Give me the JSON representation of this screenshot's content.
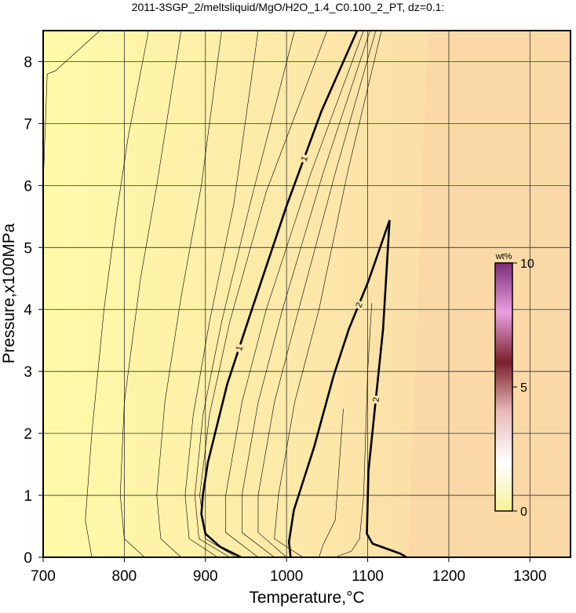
{
  "chart_data": {
    "type": "contour",
    "title": "2011-3SGP_2/meltsliquid/MgO/H2O_1.4_C0.100_2_PT, dz=0.1:",
    "xlabel": "Temperature,°C",
    "ylabel": "Pressure,x100MPa",
    "xlim": [
      700,
      1350
    ],
    "ylim": [
      0,
      8.5
    ],
    "xticks": [
      700,
      800,
      900,
      1000,
      1100,
      1200,
      1300
    ],
    "yticks": [
      0,
      1,
      2,
      3,
      4,
      5,
      6,
      7,
      8
    ],
    "grid": true,
    "contours": [
      {
        "x": [
          700,
          705,
          715,
          770
        ],
        "y": [
          6,
          7.8,
          7.85,
          8.5
        ]
      },
      {
        "x": [
          760,
          752,
          760,
          775,
          790,
          805,
          830
        ],
        "y": [
          0,
          0.6,
          2,
          4,
          5.5,
          6.8,
          8.5
        ]
      },
      {
        "x": [
          825,
          800,
          795,
          800,
          820,
          840,
          870
        ],
        "y": [
          0,
          0.3,
          1,
          2.5,
          4.5,
          6,
          8.5
        ]
      },
      {
        "x": [
          870,
          845,
          840,
          850,
          870,
          895,
          920
        ],
        "y": [
          0,
          0.3,
          1,
          2.5,
          4.2,
          6,
          8.5
        ]
      },
      {
        "x": [
          915,
          880,
          875,
          885,
          905,
          935,
          965
        ],
        "y": [
          0,
          0.3,
          1,
          2.3,
          3.8,
          5.7,
          8.5
        ]
      },
      {
        "x": [
          930,
          892,
          887,
          897,
          920,
          955,
          1010
        ],
        "y": [
          0,
          0.3,
          1,
          2.3,
          3.8,
          5.7,
          8.5
        ]
      },
      {
        "x": [
          938,
          900,
          893,
          905,
          930,
          975,
          1050
        ],
        "y": [
          0,
          0.3,
          1,
          2.3,
          3.8,
          5.9,
          8.5
        ]
      },
      {
        "level": 1,
        "x": [
          944,
          918,
          900,
          895,
          897,
          903,
          927,
          956,
          1000,
          1043,
          1087
        ],
        "y": [
          0,
          0.17,
          0.38,
          0.7,
          1.02,
          1.53,
          2.8,
          3.95,
          5.67,
          7.2,
          8.5
        ]
      },
      {
        "x": [
          965,
          925,
          925,
          945,
          975,
          1030,
          1095
        ],
        "y": [
          0,
          0.4,
          1,
          2.5,
          4,
          6.2,
          8.5
        ]
      },
      {
        "x": [
          985,
          945,
          945,
          965,
          995,
          1045,
          1103
        ],
        "y": [
          0,
          0.4,
          1,
          2.5,
          4,
          6.2,
          8.5
        ]
      },
      {
        "x": [
          1000,
          965,
          965,
          985,
          1015,
          1060,
          1110
        ],
        "y": [
          0,
          0.4,
          1,
          2.5,
          4,
          6.2,
          8.5
        ]
      },
      {
        "x": [
          1020,
          985,
          990,
          1010,
          1040,
          1075,
          1117
        ],
        "y": [
          0,
          0.3,
          1,
          2.5,
          4,
          6.2,
          8.5
        ]
      },
      {
        "level": 2,
        "x": [
          1005,
          1003,
          1009,
          1034,
          1058,
          1077,
          1101,
          1127,
          1119,
          1101,
          1099,
          1106,
          1140,
          1148
        ],
        "y": [
          0,
          0.25,
          0.76,
          1.78,
          2.93,
          3.69,
          4.46,
          5.44,
          3.69,
          1.4,
          0.38,
          0.22,
          0.06,
          0
        ]
      },
      {
        "x": [
          1040,
          1045,
          1060,
          1065,
          1070
        ],
        "y": [
          0,
          0.2,
          0.6,
          1.5,
          2.4
        ]
      },
      {
        "x": [
          1060,
          1080,
          1090,
          1095,
          1100,
          1105
        ],
        "y": [
          0,
          0.1,
          0.3,
          1,
          3,
          4.1
        ]
      }
    ],
    "colorbar": {
      "label": "wt%",
      "lim": [
        0,
        10
      ],
      "ticks": [
        0,
        5,
        10
      ],
      "colors": [
        "#f6f29a",
        "#ffffff",
        "#e9b9b9",
        "#7a1f2b",
        "#e9a0e0",
        "#7b2d7a"
      ]
    }
  }
}
